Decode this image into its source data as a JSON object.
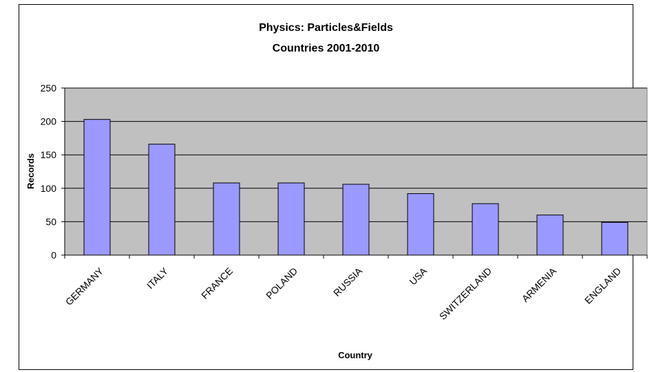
{
  "chart_data": {
    "type": "bar",
    "title": "Physics: Particles&Fields",
    "subtitle": "Countries 2001-2010",
    "xlabel": "Country",
    "ylabel": "Records",
    "categories": [
      "GERMANY",
      "ITALY",
      "FRANCE",
      "POLAND",
      "RUSSIA",
      "USA",
      "SWITZERLAND",
      "ARMENIA",
      "ENGLAND"
    ],
    "values": [
      203,
      166,
      108,
      108,
      106,
      92,
      77,
      60,
      49
    ],
    "ylim": [
      0,
      250
    ],
    "yticks": [
      0,
      50,
      100,
      150,
      200,
      250
    ],
    "grid": true,
    "legend": "none",
    "colors": {
      "bar_fill": "#9999ff",
      "bar_stroke": "#000000",
      "plot_background": "#c0c0c0",
      "gridline": "#000000"
    }
  }
}
